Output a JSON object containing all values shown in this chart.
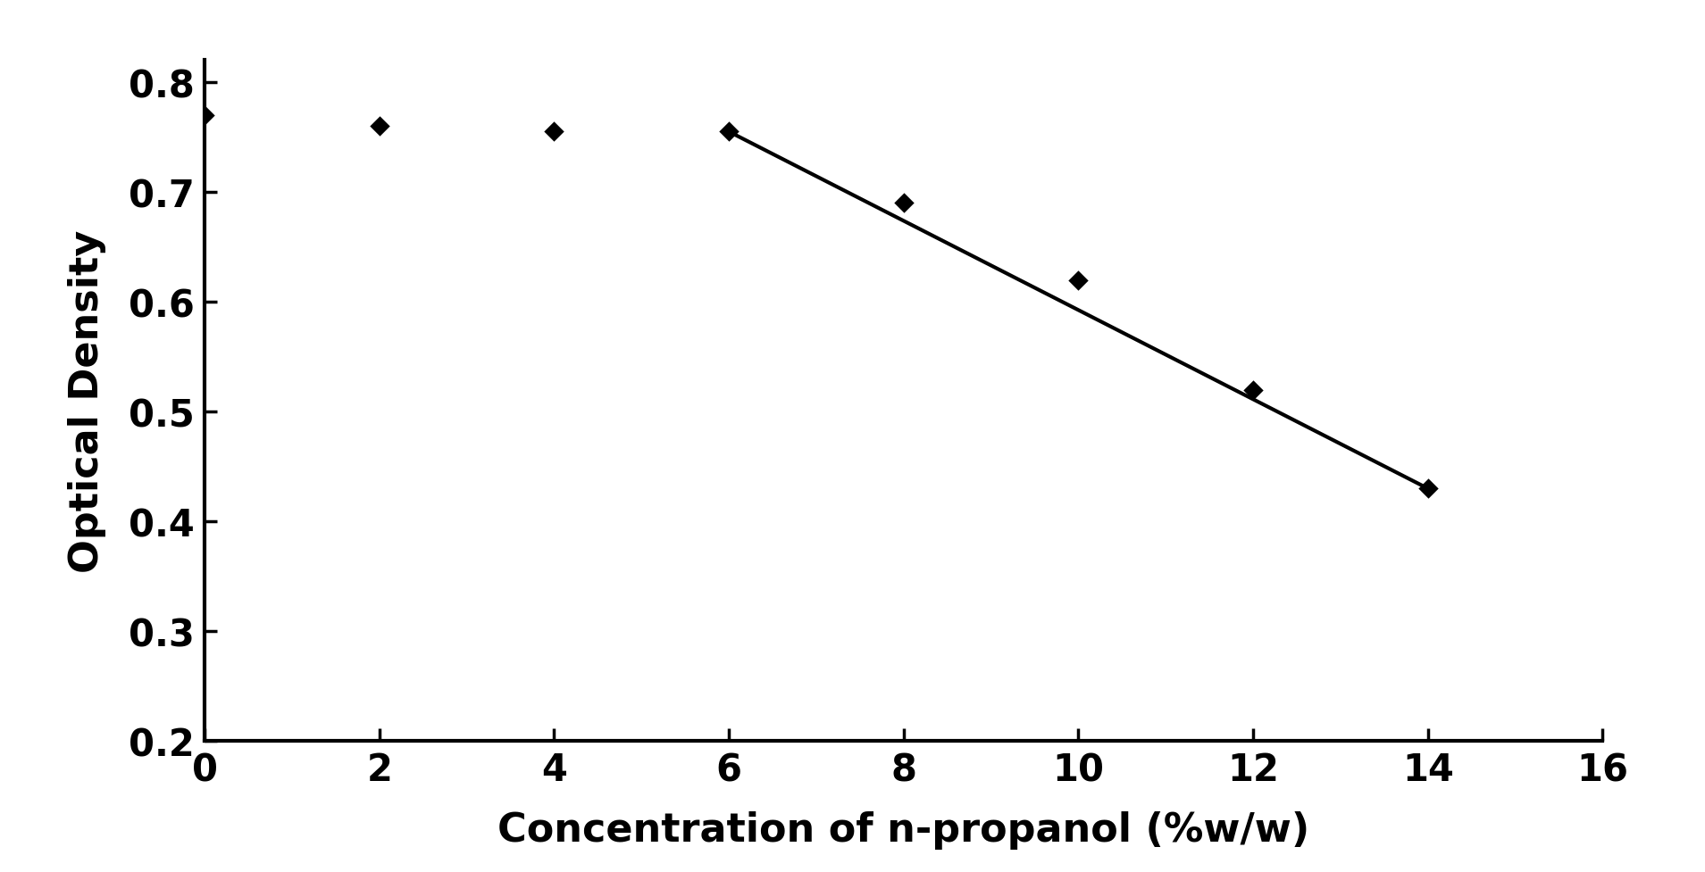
{
  "x_data": [
    0,
    2,
    4,
    6,
    8,
    10,
    12,
    14
  ],
  "y_data": [
    0.77,
    0.76,
    0.755,
    0.755,
    0.69,
    0.62,
    0.52,
    0.43
  ],
  "line_x": [
    6.0,
    14.0
  ],
  "line_y": [
    0.755,
    0.43
  ],
  "xlabel": "Concentration of n-propanol (%w/w)",
  "ylabel": "Optical Density",
  "xlim": [
    0,
    16
  ],
  "ylim": [
    0.2,
    0.82
  ],
  "xticks": [
    0,
    2,
    4,
    6,
    8,
    10,
    12,
    14,
    16
  ],
  "yticks": [
    0.2,
    0.3,
    0.4,
    0.5,
    0.6,
    0.7,
    0.8
  ],
  "marker_color": "#000000",
  "line_color": "#000000",
  "marker_size": 130,
  "line_width": 3.0,
  "xlabel_fontsize": 32,
  "ylabel_fontsize": 32,
  "tick_fontsize": 30,
  "spine_linewidth": 3.0,
  "background_color": "#ffffff"
}
